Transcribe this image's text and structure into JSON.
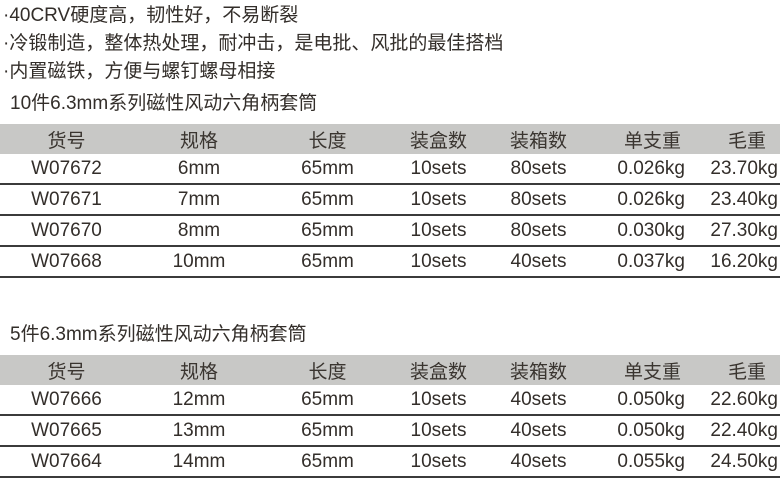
{
  "features": [
    "·40CRV硬度高，韧性好，不易断裂",
    "·冷锻制造，整体热处理，耐冲击，是电批、风批的最佳搭档",
    "·内置磁铁，方便与螺钉螺母相接"
  ],
  "columns": [
    "货号",
    "规格",
    "长度",
    "装盒数",
    "装箱数",
    "单支重",
    "毛重"
  ],
  "sections": [
    {
      "title": "10件6.3mm系列磁性风动六角柄套筒",
      "rows": [
        [
          "W07672",
          "6mm",
          "65mm",
          "10sets",
          "80sets",
          "0.026kg",
          "23.70kg"
        ],
        [
          "W07671",
          "7mm",
          "65mm",
          "10sets",
          "80sets",
          "0.026kg",
          "23.40kg"
        ],
        [
          "W07670",
          "8mm",
          "65mm",
          "10sets",
          "80sets",
          "0.030kg",
          "27.30kg"
        ],
        [
          "W07668",
          "10mm",
          "65mm",
          "10sets",
          "40sets",
          "0.037kg",
          "16.20kg"
        ]
      ]
    },
    {
      "title": "5件6.3mm系列磁性风动六角柄套筒",
      "rows": [
        [
          "W07666",
          "12mm",
          "65mm",
          "10sets",
          "40sets",
          "0.050kg",
          "22.60kg"
        ],
        [
          "W07665",
          "13mm",
          "65mm",
          "10sets",
          "40sets",
          "0.050kg",
          "22.40kg"
        ],
        [
          "W07664",
          "14mm",
          "65mm",
          "10sets",
          "40sets",
          "0.055kg",
          "24.50kg"
        ]
      ]
    }
  ],
  "colors": {
    "header_bg": "#c8c8c6",
    "text": "#332e2a",
    "row_line": "#3b3b3b"
  }
}
